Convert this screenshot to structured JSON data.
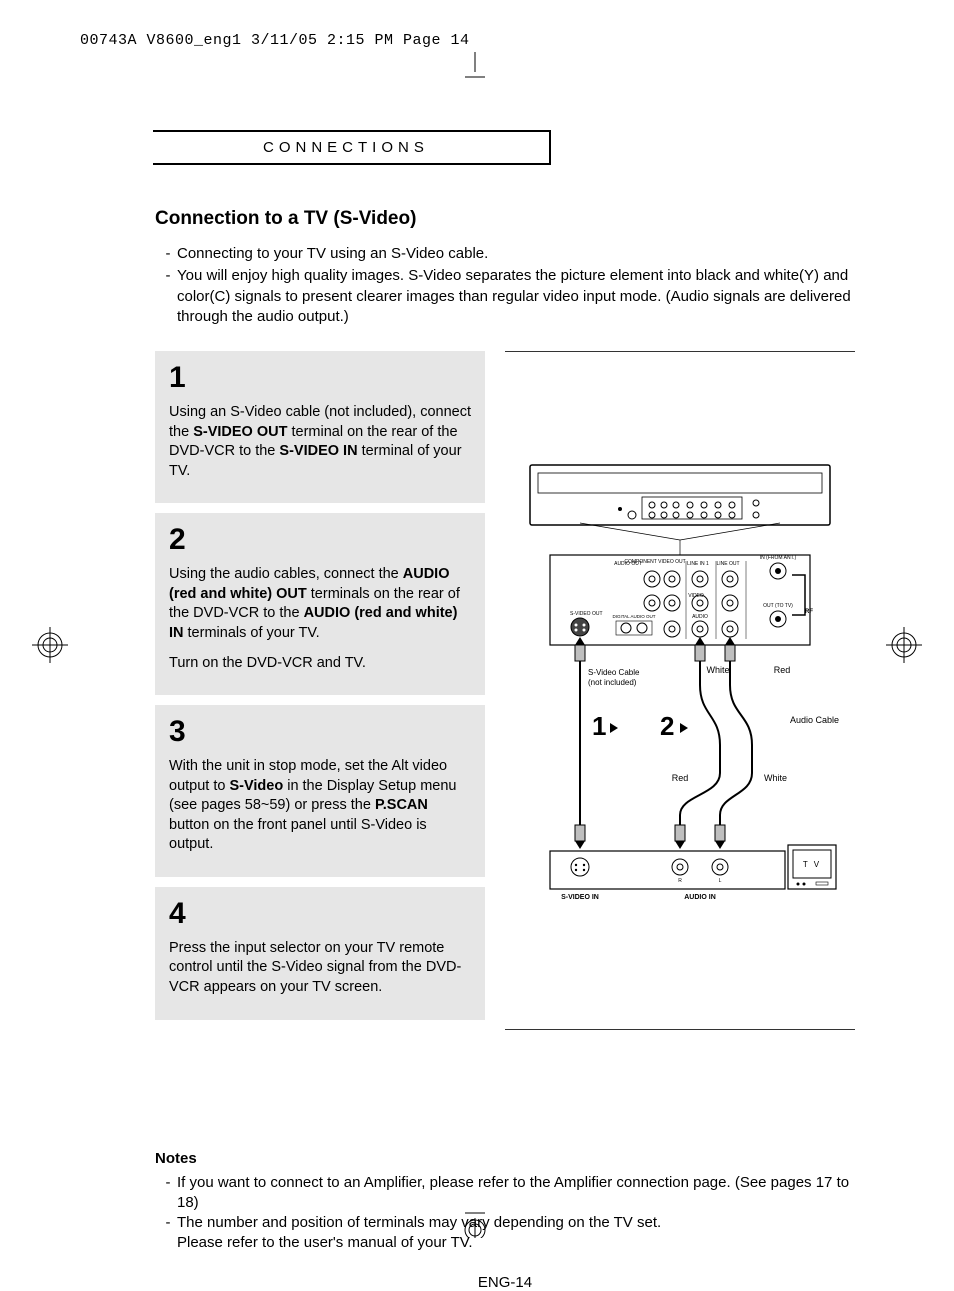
{
  "print_header": "00743A V8600_eng1  3/11/05  2:15 PM  Page 14",
  "page_number": "ENG-14",
  "section_label": "CONNECTIONS",
  "title": "Connection to a TV (S-Video)",
  "intro": [
    "Connecting to your TV using an S-Video cable.",
    "You will enjoy high quality images. S-Video separates the picture element into black and white(Y) and color(C) signals to present clearer images than regular video input mode. (Audio signals are delivered through the audio output.)"
  ],
  "steps": [
    {
      "n": "1",
      "html": "Using an S-Video cable (not included), connect the <b>S-VIDEO OUT</b> terminal on the rear of the DVD-VCR to the <b>S-VIDEO IN</b> terminal of your TV."
    },
    {
      "n": "2",
      "html": "Using the audio cables, connect the <b>AUDIO (red and white) OUT</b> terminals on the rear of the DVD-VCR to the <b>AUDIO (red and white) IN</b> terminals of your TV.<span class=\"gap\"></span>Turn on the DVD-VCR and TV."
    },
    {
      "n": "3",
      "html": "With the unit in stop mode, set the Alt video output to <b>S-Video</b> in the Display Setup menu (see pages 58~59) or press the <b>P.SCAN</b> button on the front panel until S-Video is output."
    },
    {
      "n": "4",
      "html": "Press the input selector on your TV remote control until the S-Video signal from the DVD-VCR appears on your TV screen."
    }
  ],
  "diagram": {
    "labels": {
      "svideo_out": "S-VIDEO OUT",
      "audio_out": "AUDIO OUT",
      "component": "COMPONENT VIDEO OUT",
      "line_in": "LINE IN 1",
      "line_out": "LINE OUT",
      "video": "VIDEO",
      "audio": "AUDIO",
      "digital": "DIGITAL AUDIO OUT",
      "in_ant": "IN (FROM ANT.)",
      "out_tv": "OUT (TO TV)",
      "svideo_cable": "S-Video Cable (not included)",
      "audio_cable": "Audio Cable",
      "white": "White",
      "red": "Red",
      "svideo_in": "S-VIDEO IN",
      "audio_in": "AUDIO IN",
      "tv": "T V",
      "step1": "1",
      "step2": "2",
      "rf": "RF"
    },
    "colors": {
      "stroke": "#000000",
      "fill_light": "#ffffff",
      "fill_grey": "#bfbfbf",
      "fill_dark": "#000000"
    },
    "fontsize": {
      "tiny": 5,
      "small": 7,
      "label": 9,
      "big": 24
    }
  },
  "notes_title": "Notes",
  "notes": [
    "If you want to connect to an Amplifier, please refer to the Amplifier connection page. (See pages 17 to 18)",
    "The number and position of terminals may vary depending on the TV set.\nPlease refer to the user's manual of your TV."
  ],
  "colors": {
    "text": "#000000",
    "step_bg": "#e6e6e6",
    "page_bg": "#ffffff"
  }
}
